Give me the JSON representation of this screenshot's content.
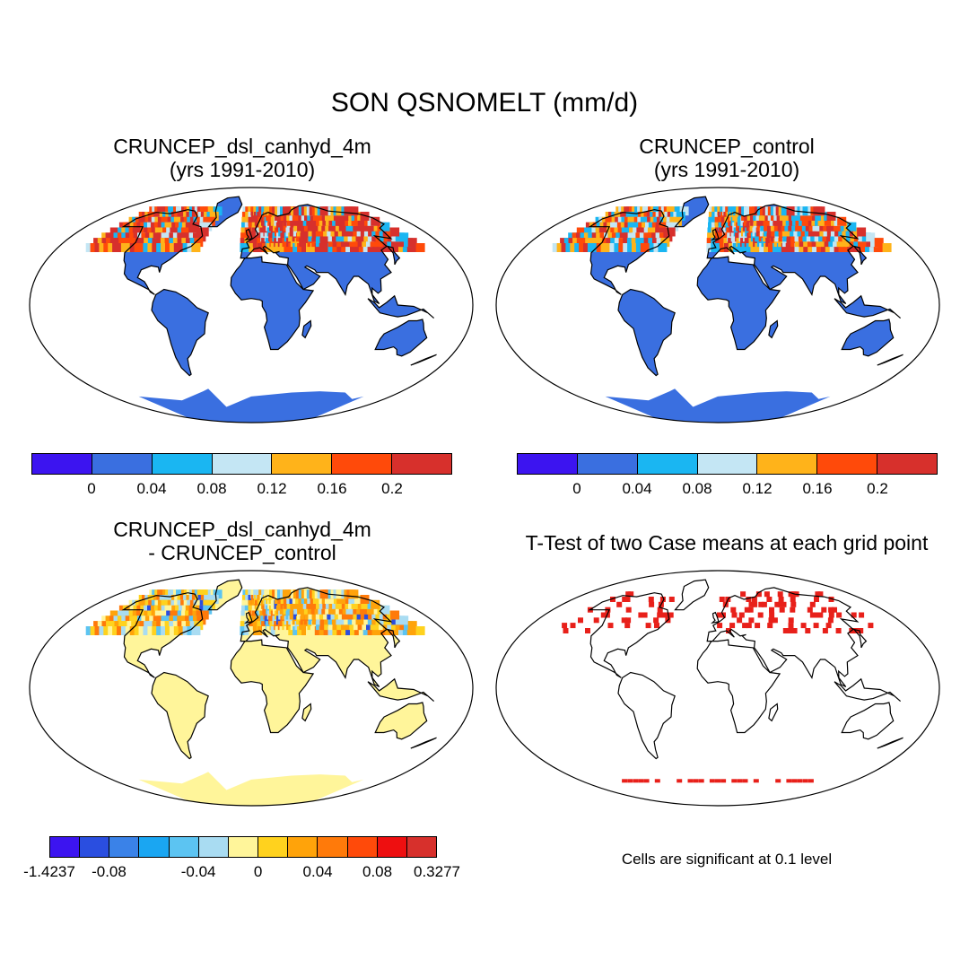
{
  "figure": {
    "title": "SON QSNOMELT (mm/d)",
    "panels": [
      {
        "id": "a",
        "title_line1": "CRUNCEP_dsl_canhyd_4m",
        "title_line2": "(yrs 1991-2010)"
      },
      {
        "id": "b",
        "title_line1": "CRUNCEP_control",
        "title_line2": "(yrs 1991-2010)"
      },
      {
        "id": "c",
        "title_line1": "CRUNCEP_dsl_canhyd_4m",
        "title_line2": "- CRUNCEP_control"
      },
      {
        "id": "d",
        "title_line1": "T-Test of two Case means at each grid point",
        "title_line2": ""
      }
    ],
    "colorbar_top": {
      "colors": [
        "#3c14f0",
        "#3a6fe0",
        "#1ab6f2",
        "#c4e6f4",
        "#ffb31a",
        "#ff4a0a",
        "#d7302c"
      ],
      "labels": [
        "0",
        "0.04",
        "0.08",
        "0.12",
        "0.16",
        "0.2"
      ]
    },
    "colorbar_diff": {
      "colors": [
        "#3c14f0",
        "#2a4ee0",
        "#3a82e8",
        "#1aa6f2",
        "#5cc4f2",
        "#a9dcf2",
        "#fff59a",
        "#ffd21e",
        "#ffa30a",
        "#ff7a0a",
        "#ff4a0a",
        "#ee0f10",
        "#d7302c"
      ],
      "labels": [
        "-1.4237",
        "-0.08",
        "-0.04",
        "0",
        "0.04",
        "0.08",
        "0.3277"
      ]
    },
    "significance_note": "Cells are significant at 0.1 level"
  }
}
